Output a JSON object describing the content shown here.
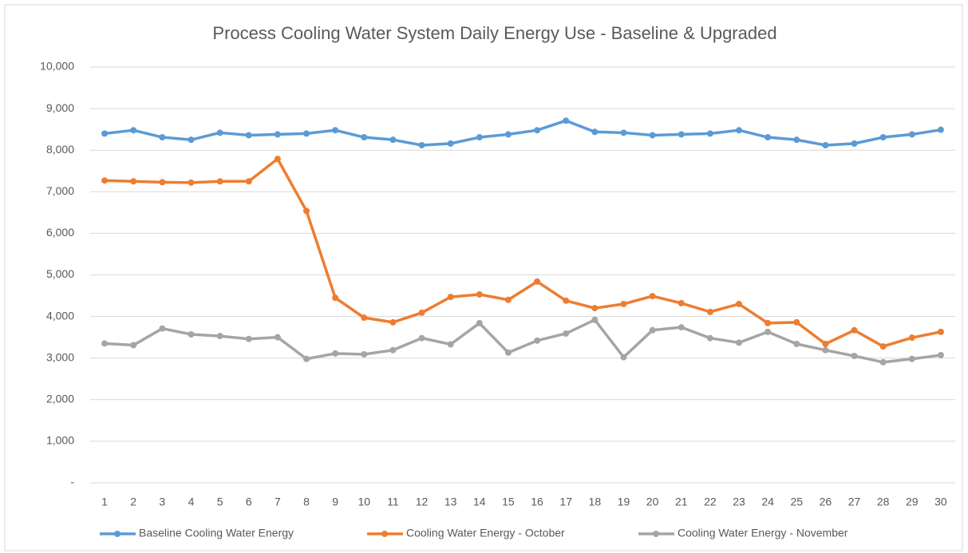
{
  "chart_data": {
    "type": "line",
    "title": "Process Cooling Water System Daily Energy Use - Baseline & Upgraded",
    "categories": [
      "1",
      "2",
      "3",
      "4",
      "5",
      "6",
      "7",
      "8",
      "9",
      "10",
      "11",
      "12",
      "13",
      "14",
      "15",
      "16",
      "17",
      "18",
      "19",
      "20",
      "21",
      "22",
      "23",
      "24",
      "25",
      "26",
      "27",
      "28",
      "29",
      "30"
    ],
    "series": [
      {
        "name": "Baseline Cooling Water Energy",
        "color": "#5b9bd5",
        "values": [
          8400,
          8480,
          8310,
          8250,
          8420,
          8360,
          8380,
          8400,
          8480,
          8310,
          8250,
          8120,
          8160,
          8310,
          8380,
          8480,
          8710,
          8440,
          8420,
          8360,
          8380,
          8400,
          8480,
          8310,
          8250,
          8120,
          8160,
          8310,
          8380,
          8490
        ]
      },
      {
        "name": "Cooling Water Energy - October",
        "color": "#ed7d31",
        "values": [
          7270,
          7250,
          7230,
          7220,
          7250,
          7250,
          7790,
          6540,
          4450,
          3970,
          3860,
          4090,
          4470,
          4530,
          4400,
          4840,
          4380,
          4200,
          4300,
          4490,
          4320,
          4110,
          4300,
          3840,
          3860,
          3340,
          3670,
          3280,
          3490,
          3630
        ]
      },
      {
        "name": "Cooling Water Energy - November",
        "color": "#a5a5a5",
        "values": [
          3350,
          3310,
          3710,
          3570,
          3530,
          3460,
          3500,
          2980,
          3110,
          3090,
          3190,
          3480,
          3330,
          3840,
          3130,
          3420,
          3590,
          3920,
          3020,
          3670,
          3740,
          3480,
          3370,
          3630,
          3340,
          3190,
          3050,
          2900,
          2980,
          3070
        ]
      }
    ],
    "ylim": [
      0,
      10000
    ],
    "yticks": [
      {
        "value": 0,
        "label": "-"
      },
      {
        "value": 1000,
        "label": "1,000"
      },
      {
        "value": 2000,
        "label": "2,000"
      },
      {
        "value": 3000,
        "label": "3,000"
      },
      {
        "value": 4000,
        "label": "4,000"
      },
      {
        "value": 5000,
        "label": "5,000"
      },
      {
        "value": 6000,
        "label": "6,000"
      },
      {
        "value": 7000,
        "label": "7,000"
      },
      {
        "value": 8000,
        "label": "8,000"
      },
      {
        "value": 9000,
        "label": "9,000"
      },
      {
        "value": 10000,
        "label": "10,000"
      }
    ],
    "grid": true,
    "legend": "bottom"
  }
}
